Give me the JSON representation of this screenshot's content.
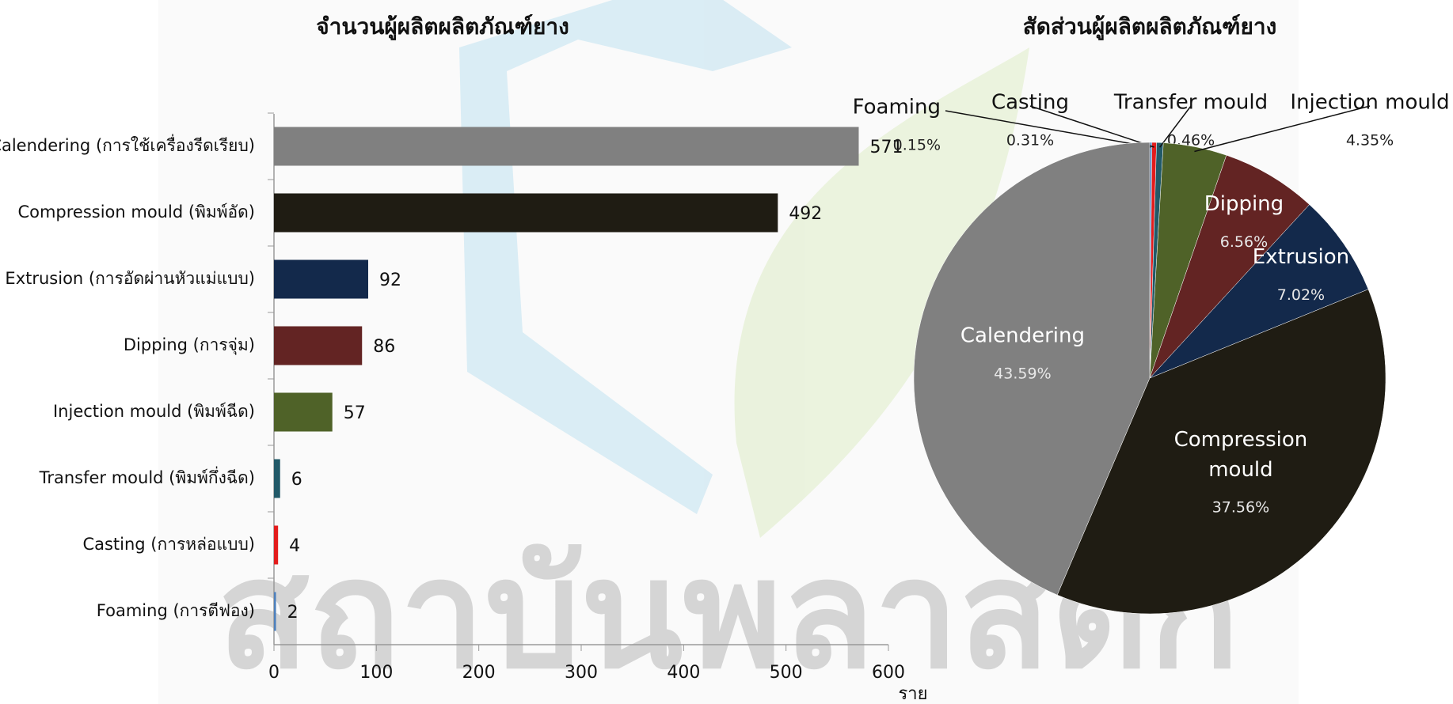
{
  "watermark": "สถาบันพลาสติก",
  "chart_data": [
    {
      "type": "hbar",
      "title": "จำนวนผู้ผลิตผลิตภัณฑ์ยาง",
      "categories": [
        "Calendering (การใช้เครื่องรีดเรียบ)",
        "Compression mould (พิมพ์อัด)",
        "Extrusion (การอัดผ่านหัวแม่แบบ)",
        "Dipping (การจุ่ม)",
        "Injection mould (พิมพ์ฉีด)",
        "Transfer mould (พิมพ์กึ่งฉีด)",
        "Casting (การหล่อแบบ)",
        "Foaming (การตีฟอง)"
      ],
      "values": [
        571,
        492,
        92,
        86,
        57,
        6,
        4,
        2
      ],
      "colors": [
        "#808080",
        "#1f1c13",
        "#13294b",
        "#632423",
        "#4f6228",
        "#215968",
        "#e31c1c",
        "#4f81bd"
      ],
      "xlim": [
        0,
        600
      ],
      "xticks": [
        0,
        100,
        200,
        300,
        400,
        500,
        600
      ],
      "x_label": "ราย"
    },
    {
      "type": "pie",
      "title": "สัดส่วนผู้ผลิตผลิตภัณฑ์ยาง",
      "categories": [
        "Foaming",
        "Casting",
        "Transfer mould",
        "Injection mould",
        "Dipping",
        "Extrusion",
        "Compression mould",
        "Calendering"
      ],
      "values": [
        0.15,
        0.31,
        0.46,
        4.35,
        6.56,
        7.02,
        37.56,
        43.59
      ],
      "value_labels": [
        "0.15%",
        "0.31%",
        "0.46%",
        "4.35%",
        "6.56%",
        "7.02%",
        "37.56%",
        "43.59%"
      ],
      "colors": [
        "#4f81bd",
        "#e31c1c",
        "#215968",
        "#4f6228",
        "#632423",
        "#13294b",
        "#1f1c13",
        "#808080"
      ]
    }
  ]
}
